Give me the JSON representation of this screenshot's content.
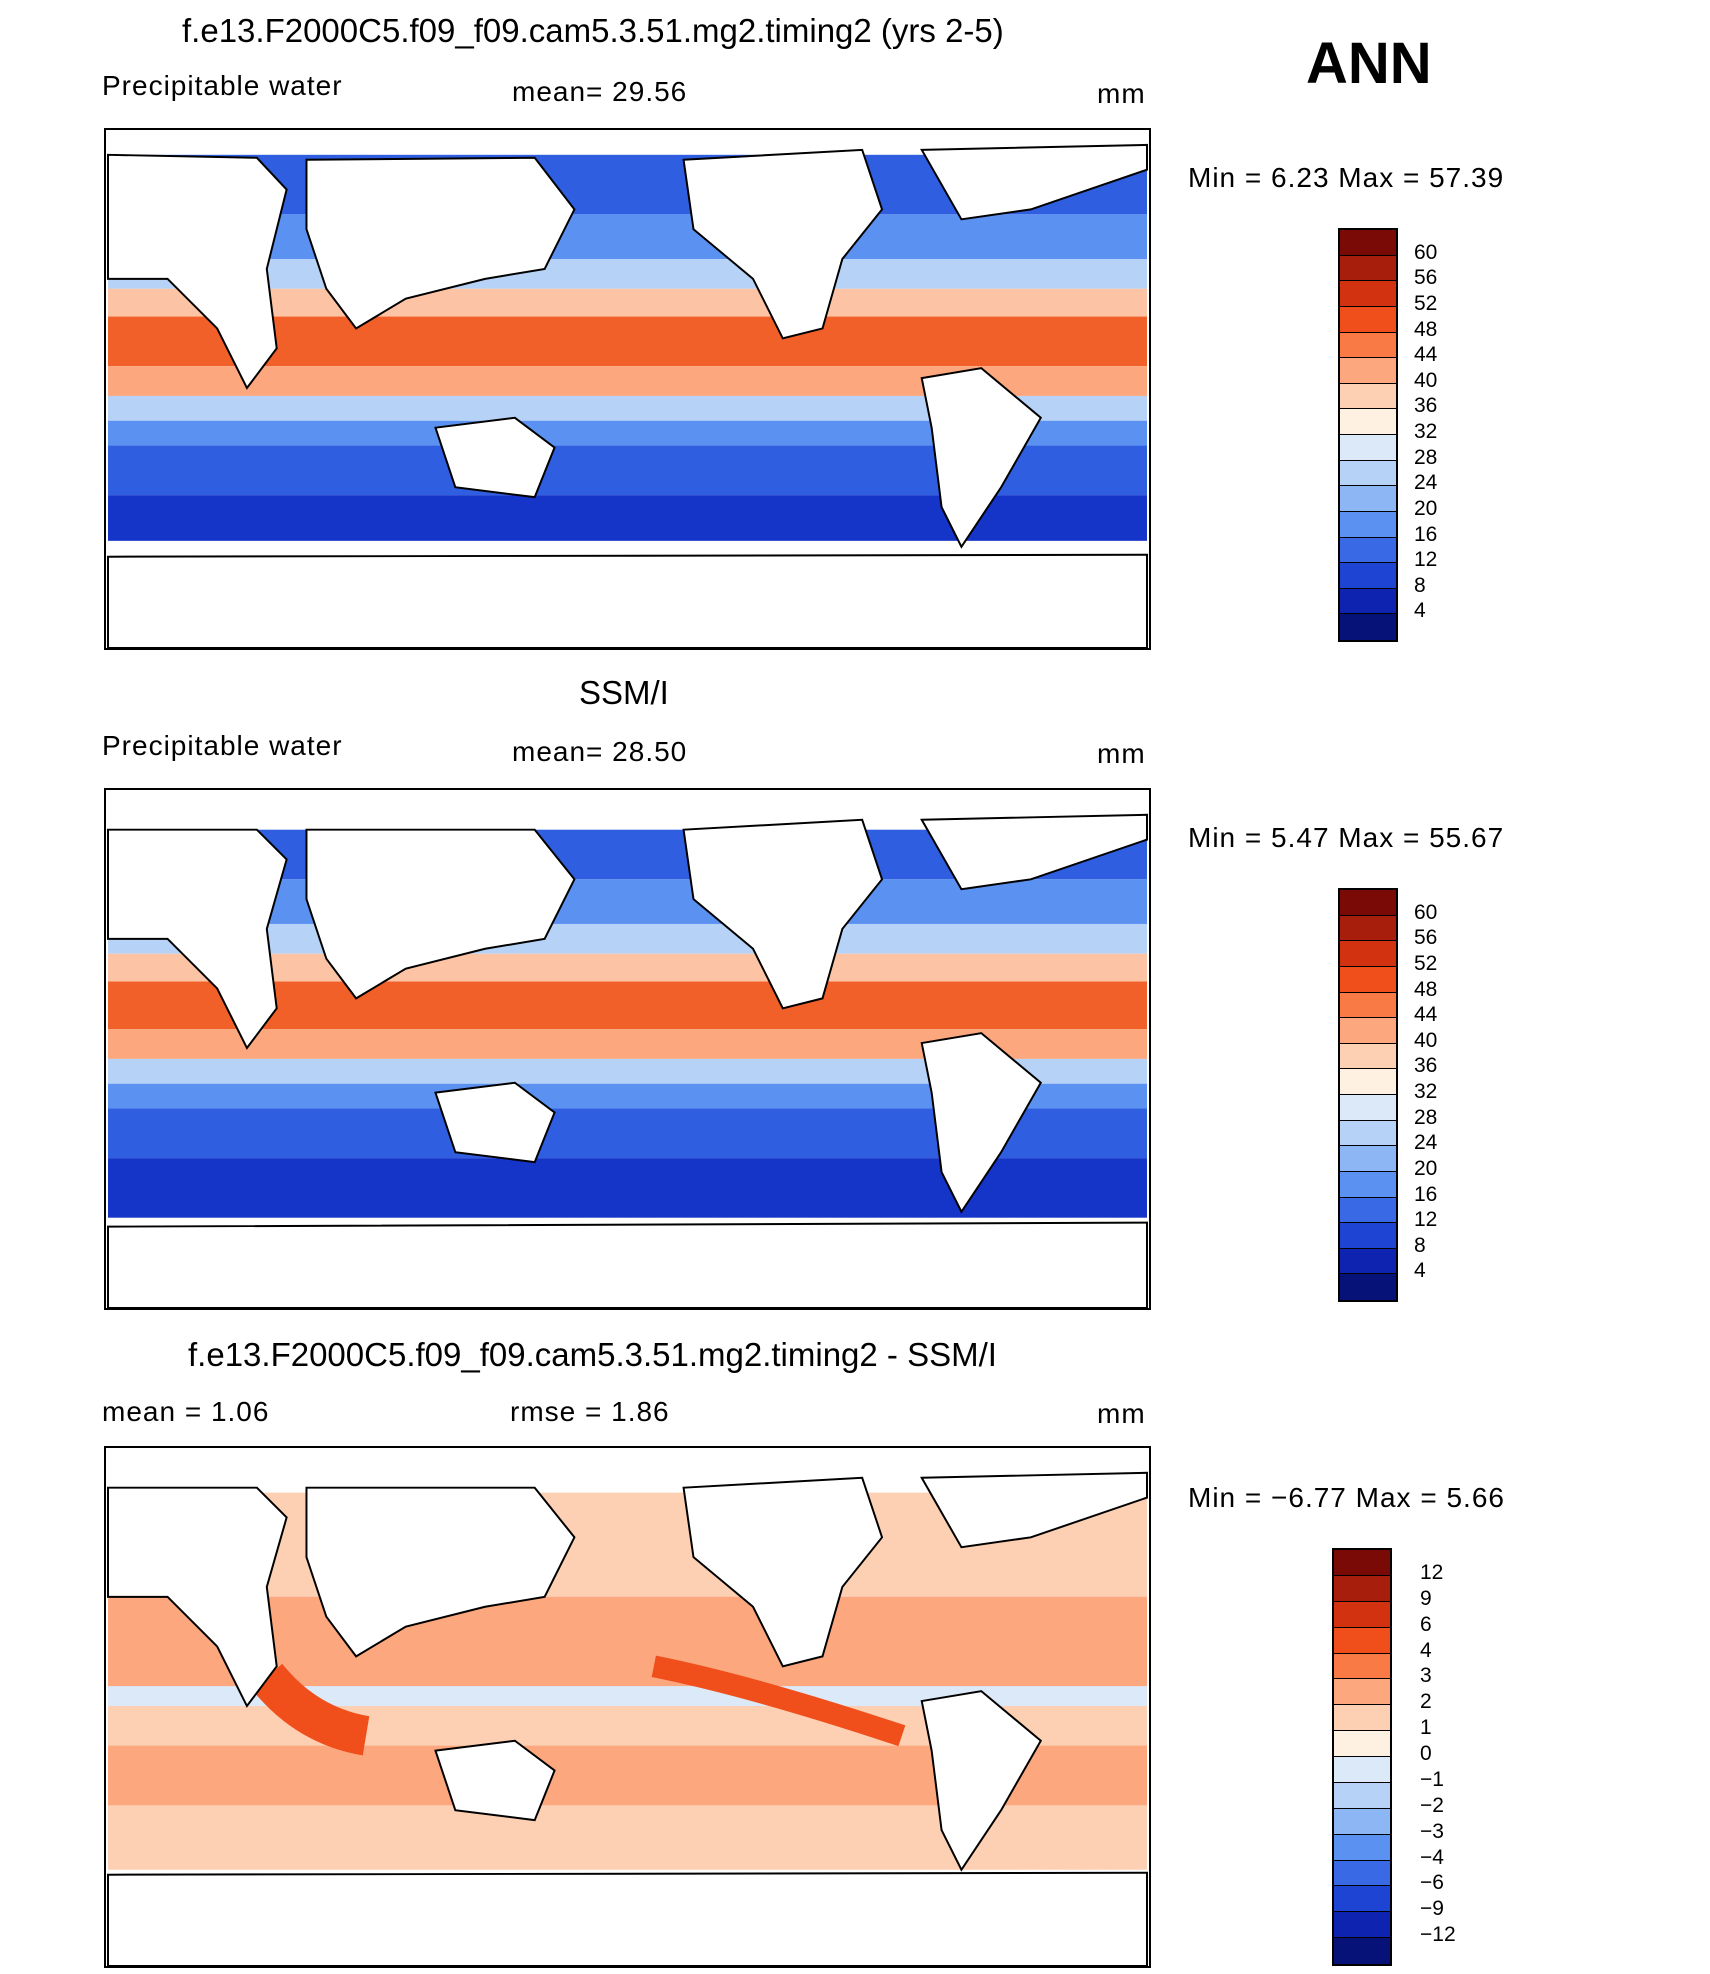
{
  "season": "ANN",
  "panels": [
    {
      "id": "model",
      "title": "f.e13.F2000C5.f09_f09.cam5.3.51.mg2.timing2 (yrs 2-5)",
      "left_label": "Precipitable  water",
      "center_label": "mean=   29.56",
      "units": "mm",
      "minmax": "Min  =     6.23  Max  =    57.39",
      "colorbar": {
        "levels": [
          "60",
          "56",
          "52",
          "48",
          "44",
          "40",
          "36",
          "32",
          "28",
          "24",
          "20",
          "16",
          "12",
          "8",
          "4"
        ],
        "colors": [
          "#7a0a06",
          "#a81e0c",
          "#d2320f",
          "#f04f1c",
          "#f97a45",
          "#fca77d",
          "#fdcfb3",
          "#fef1e2",
          "#dbe9f9",
          "#b6d2f6",
          "#8cb6f4",
          "#5b91f0",
          "#3a69e6",
          "#1e44d4",
          "#0e24b0",
          "#061277"
        ]
      }
    },
    {
      "id": "obs",
      "title": "SSM/I",
      "left_label": "Precipitable  water",
      "center_label": "mean=   28.50",
      "units": "mm",
      "minmax": "Min  =     5.47  Max  =    55.67",
      "colorbar": {
        "levels": [
          "60",
          "56",
          "52",
          "48",
          "44",
          "40",
          "36",
          "32",
          "28",
          "24",
          "20",
          "16",
          "12",
          "8",
          "4"
        ],
        "colors": [
          "#7a0a06",
          "#a81e0c",
          "#d2320f",
          "#f04f1c",
          "#f97a45",
          "#fca77d",
          "#fdcfb3",
          "#fef1e2",
          "#dbe9f9",
          "#b6d2f6",
          "#8cb6f4",
          "#5b91f0",
          "#3a69e6",
          "#1e44d4",
          "#0e24b0",
          "#061277"
        ]
      }
    },
    {
      "id": "diff",
      "title": "f.e13.F2000C5.f09_f09.cam5.3.51.mg2.timing2 - SSM/I",
      "left_label": "mean  =      1.06",
      "center_label": "rmse  =      1.86",
      "units": "mm",
      "minmax": "Min  =   −6.77  Max  =       5.66",
      "colorbar": {
        "levels": [
          "12",
          "9",
          "6",
          "4",
          "3",
          "2",
          "1",
          "0",
          "−1",
          "−2",
          "−3",
          "−4",
          "−6",
          "−9",
          "−12"
        ],
        "colors": [
          "#7a0a06",
          "#a81e0c",
          "#d2320f",
          "#f04f1c",
          "#f97a45",
          "#fca77d",
          "#fdcfb3",
          "#fef1e2",
          "#dbe9f9",
          "#b6d2f6",
          "#8cb6f4",
          "#5b91f0",
          "#3a69e6",
          "#1e44d4",
          "#0e24b0",
          "#061277"
        ]
      }
    }
  ]
}
